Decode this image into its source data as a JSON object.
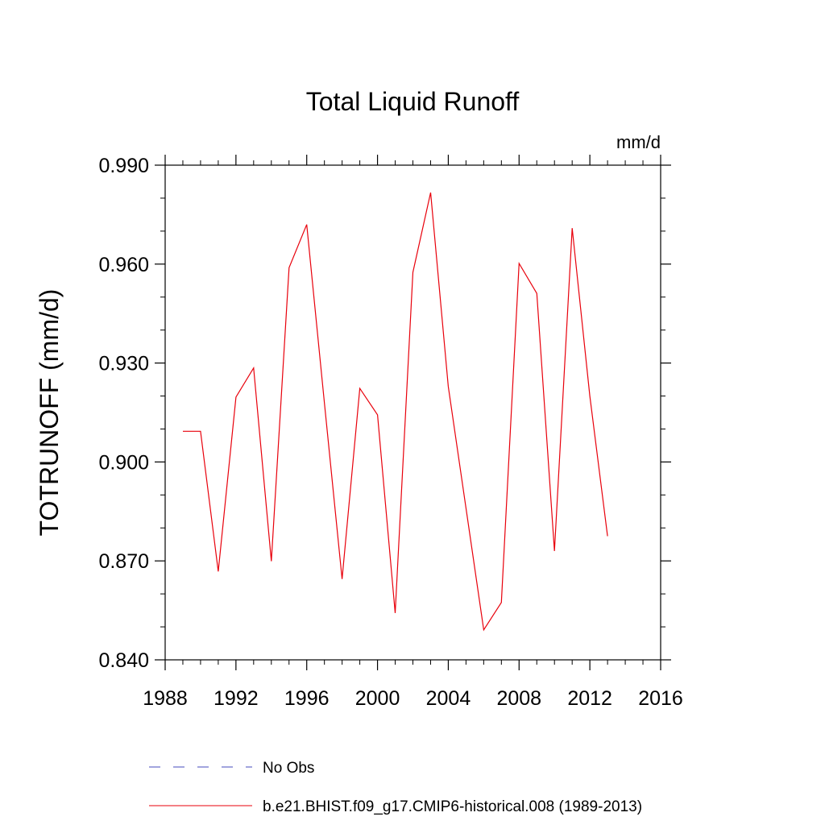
{
  "chart_data": {
    "type": "line",
    "title": "Total Liquid Runoff",
    "units": "mm/d",
    "ylabel": "TOTRUNOFF  (mm/d)",
    "xlabel": "",
    "xlim": [
      1988,
      2016
    ],
    "ylim": [
      0.84,
      0.99
    ],
    "x_ticks": [
      1988,
      1992,
      1996,
      2000,
      2004,
      2008,
      2012,
      2016
    ],
    "x_tick_labels": [
      "1988",
      "1992",
      "1996",
      "2000",
      "2004",
      "2008",
      "2012",
      "2016"
    ],
    "y_ticks": [
      0.84,
      0.87,
      0.9,
      0.93,
      0.96,
      0.99
    ],
    "y_tick_labels": [
      "0.840",
      "0.870",
      "0.900",
      "0.930",
      "0.960",
      "0.990"
    ],
    "grid": false,
    "legend_position": "bottom",
    "series": [
      {
        "name": "b.e21.BHIST.f09_g17.CMIP6-historical.008 (1989-2013)",
        "color": "#e8000b",
        "style": "solid",
        "x": [
          1989,
          1990,
          1991,
          1992,
          1993,
          1994,
          1995,
          1996,
          1997,
          1998,
          1999,
          2000,
          2001,
          2002,
          2003,
          2004,
          2005,
          2006,
          2007,
          2008,
          2009,
          2010,
          2011,
          2012,
          2013
        ],
        "y": [
          0.9093,
          0.9093,
          0.8668,
          0.9197,
          0.9285,
          0.8699,
          0.9589,
          0.972,
          0.9178,
          0.8645,
          0.9223,
          0.9143,
          0.8542,
          0.9575,
          0.9817,
          0.9229,
          0.886,
          0.8491,
          0.8574,
          0.9602,
          0.9511,
          0.873,
          0.9709,
          0.92,
          0.8775
        ]
      },
      {
        "name": "No Obs",
        "color": "#6a6fc9",
        "style": "dashed",
        "x": [],
        "y": []
      }
    ]
  }
}
